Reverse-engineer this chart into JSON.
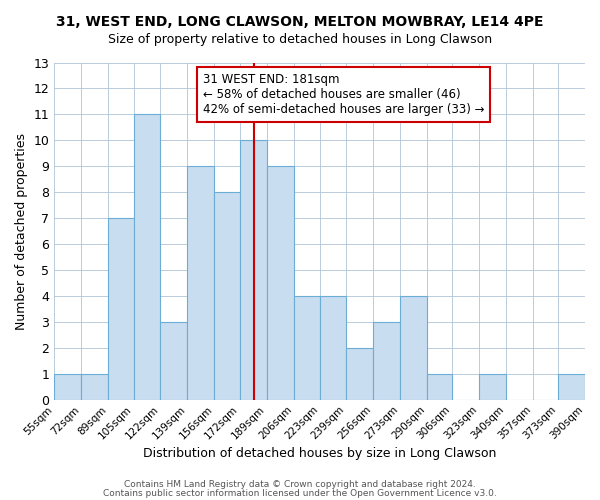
{
  "title": "31, WEST END, LONG CLAWSON, MELTON MOWBRAY, LE14 4PE",
  "subtitle": "Size of property relative to detached houses in Long Clawson",
  "xlabel": "Distribution of detached houses by size in Long Clawson",
  "ylabel": "Number of detached properties",
  "bin_labels": [
    "55sqm",
    "72sqm",
    "89sqm",
    "105sqm",
    "122sqm",
    "139sqm",
    "156sqm",
    "172sqm",
    "189sqm",
    "206sqm",
    "223sqm",
    "239sqm",
    "256sqm",
    "273sqm",
    "290sqm",
    "306sqm",
    "323sqm",
    "340sqm",
    "357sqm",
    "373sqm",
    "390sqm"
  ],
  "bar_values": [
    1,
    1,
    7,
    11,
    3,
    9,
    8,
    10,
    9,
    4,
    4,
    2,
    3,
    4,
    1,
    0,
    1,
    0,
    0,
    1
  ],
  "bar_color": "#c9ddf0",
  "bar_edgecolor": "#6aaed6",
  "vline_x": 181,
  "vline_color": "#cc0000",
  "bin_edges": [
    55,
    72,
    89,
    105,
    122,
    139,
    156,
    172,
    189,
    206,
    223,
    239,
    256,
    273,
    290,
    306,
    323,
    340,
    357,
    373,
    390
  ],
  "ylim": [
    0,
    13
  ],
  "yticks": [
    0,
    1,
    2,
    3,
    4,
    5,
    6,
    7,
    8,
    9,
    10,
    11,
    12,
    13
  ],
  "annotation_title": "31 WEST END: 181sqm",
  "annotation_line1": "← 58% of detached houses are smaller (46)",
  "annotation_line2": "42% of semi-detached houses are larger (33) →",
  "annotation_box_color": "#ffffff",
  "annotation_box_edgecolor": "#cc0000",
  "footer_line1": "Contains HM Land Registry data © Crown copyright and database right 2024.",
  "footer_line2": "Contains public sector information licensed under the Open Government Licence v3.0.",
  "background_color": "#ffffff",
  "grid_color": "#b0c4d8"
}
